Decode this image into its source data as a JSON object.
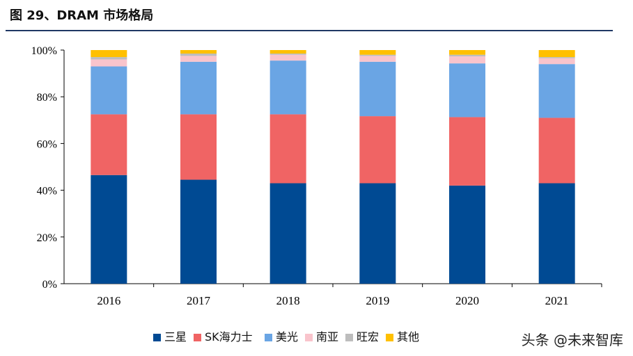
{
  "figure_title": "图 29、DRAM 市场格局",
  "watermark": "头条 @未来智库",
  "chart_data": {
    "type": "bar",
    "stacked": true,
    "categories": [
      "2016",
      "2017",
      "2018",
      "2019",
      "2020",
      "2021"
    ],
    "ylim": [
      0,
      100
    ],
    "yticks": [
      "0%",
      "20%",
      "40%",
      "60%",
      "80%",
      "100%"
    ],
    "legend_position": "bottom",
    "series": [
      {
        "name": "三星",
        "color": "#004a93",
        "values": [
          46.5,
          44.5,
          43.0,
          43.0,
          42.0,
          43.0
        ]
      },
      {
        "name": "SK海力士",
        "color": "#f06464",
        "values": [
          26.0,
          28.0,
          29.5,
          28.7,
          29.3,
          28.0
        ]
      },
      {
        "name": "美光",
        "color": "#6aa5e4",
        "values": [
          20.5,
          22.5,
          23.0,
          23.3,
          23.0,
          23.0
        ]
      },
      {
        "name": "南亚",
        "color": "#f9c4cc",
        "values": [
          3.0,
          2.5,
          2.5,
          2.5,
          3.0,
          2.5
        ]
      },
      {
        "name": "旺宏",
        "color": "#bdbdbd",
        "values": [
          1.0,
          1.0,
          0.5,
          0.5,
          0.7,
          0.5
        ]
      },
      {
        "name": "其他",
        "color": "#ffc000",
        "values": [
          3.0,
          1.5,
          1.5,
          2.0,
          2.0,
          3.0
        ]
      }
    ]
  }
}
